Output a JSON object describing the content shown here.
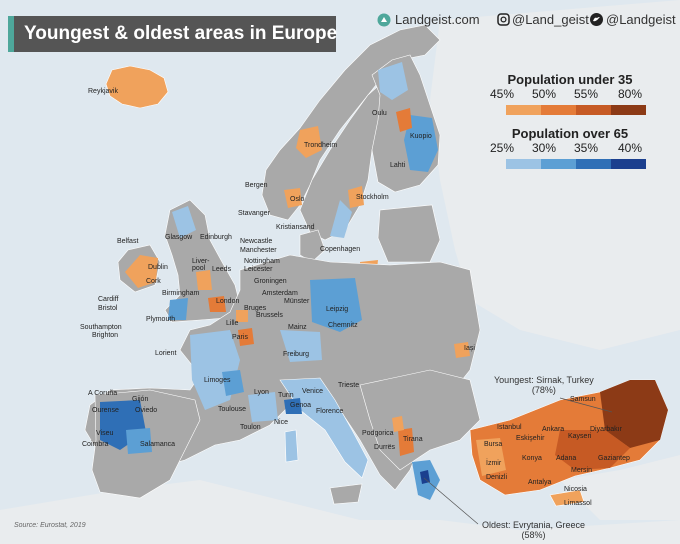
{
  "title": "Youngest & oldest areas in Europe",
  "branding": {
    "site": "Landgeist.com",
    "instagram": "@Land_geist",
    "twitter": "@Landgeist"
  },
  "legend_young": {
    "title": "Population under 35",
    "ticks": [
      "45%",
      "50%",
      "55%",
      "80%"
    ],
    "colors": [
      "#f0a25c",
      "#e47b38",
      "#c65a24",
      "#8c3a16"
    ]
  },
  "legend_old": {
    "title": "Population over 65",
    "ticks": [
      "25%",
      "30%",
      "35%",
      "40%"
    ],
    "colors": [
      "#9cc3e4",
      "#5c9fd4",
      "#2f6fb6",
      "#1b3f8e"
    ]
  },
  "annotations": {
    "youngest": {
      "text": "Youngest: Sirnak, Turkey",
      "pct": "(78%)"
    },
    "oldest": {
      "text": "Oldest: Evrytania, Greece",
      "pct": "(58%)"
    }
  },
  "source": "Source: Eurostat, 2019",
  "colors": {
    "sea": "#dfe8ef",
    "land_nodata": "#e9ecee",
    "eu_base": "#a9a9a9",
    "border": "#ffffff"
  },
  "cities": {
    "reykjavik": "Reykjavik",
    "oulu": "Oulu",
    "kuopio": "Kuopio",
    "lahti": "Lahti",
    "trondheim": "Trondheim",
    "bergen": "Bergen",
    "oslo": "Oslo",
    "stockholm": "Stockholm",
    "stavanger": "Stavanger",
    "kristiansand": "Kristiansand",
    "glasgow": "Glasgow",
    "edinburgh": "Edinburgh",
    "belfast": "Belfast",
    "newcastle": "Newcastle",
    "manchester": "Manchester",
    "copenhagen": "Copenhagen",
    "dublin": "Dublin",
    "liverpool": "Liver-\npool",
    "leeds": "Leeds",
    "nottingham": "Nottingham",
    "leicester": "Leicester",
    "cork": "Cork",
    "birmingham": "Birmingham",
    "groningen": "Groningen",
    "amsterdam": "Amsterdam",
    "munster": "Münster",
    "cardiff": "Cardiff",
    "bristol": "Bristol",
    "london": "London",
    "bruges": "Bruges",
    "brussels": "Brussels",
    "leipzig": "Leipzig",
    "plymouth": "Plymouth",
    "lille": "Lille",
    "chemnitz": "Chemnitz",
    "southampton": "Southampton",
    "brighton": "Brighton",
    "mainz": "Mainz",
    "paris": "Paris",
    "iasi": "Iași",
    "lorient": "Lorient",
    "freiburg": "Freiburg",
    "limoges": "Limoges",
    "trieste": "Trieste",
    "acoruna": "A Coruña",
    "gijon": "Gijón",
    "lyon": "Lyon",
    "turin": "Turin",
    "venice": "Venice",
    "samsun": "Samsun",
    "ourense": "Ourense",
    "oviedo": "Oviedo",
    "toulouse": "Toulouse",
    "genoa": "Genoa",
    "florence": "Florence",
    "istanbul": "Istanbul",
    "ankara": "Ankara",
    "diyarbakir": "Diyarbakır",
    "toulon": "Toulon",
    "nice": "Nice",
    "kayseri": "Kayseri",
    "viseu": "Viseu",
    "bursa": "Bursa",
    "eskisehir": "Eskişehir",
    "podgorica": "Podgorica",
    "coimbra": "Coimbra",
    "salamanca": "Salamanca",
    "tirana": "Tirana",
    "durres": "Durrës",
    "konya": "Konya",
    "adana": "Adana",
    "gaziantep": "Gaziantep",
    "izmir": "İzmir",
    "mersin": "Mersin",
    "denizli": "Denizli",
    "antalya": "Antalya",
    "nicosia": "Nicosia",
    "limassol": "Limassol"
  }
}
